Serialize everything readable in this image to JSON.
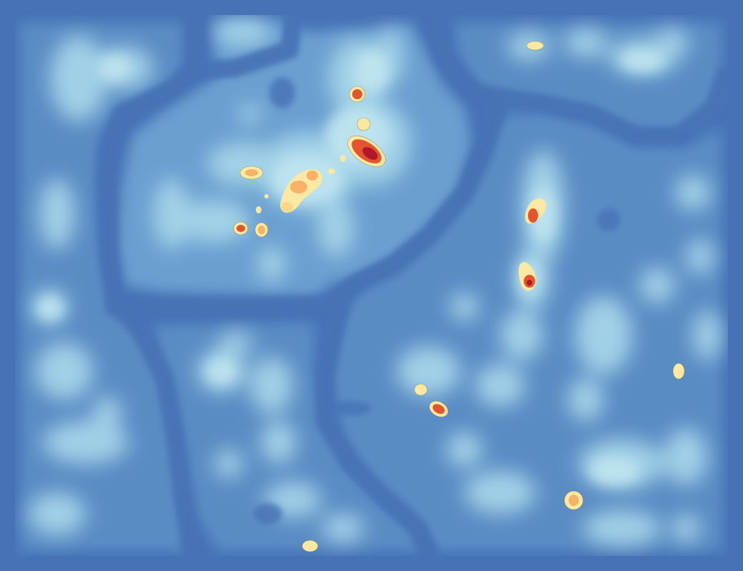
{
  "map": {
    "type": "density-heatmap",
    "palette": {
      "background": "#4673b5",
      "low": "#5a8cc4",
      "mid_low": "#8cc3e0",
      "mid": "#b6e0ee",
      "mid_high": "#fbe8a2",
      "high": "#f7b267",
      "very_high": "#e4542f",
      "peak": "#b2182b"
    },
    "regions": [
      {
        "name": "northwest",
        "level": "low"
      },
      {
        "name": "north-central",
        "level": "mid"
      },
      {
        "name": "northeast",
        "level": "low"
      },
      {
        "name": "west",
        "level": "low"
      },
      {
        "name": "south-central",
        "level": "low"
      },
      {
        "name": "east",
        "level": "mid_low"
      }
    ],
    "hotspots": [
      {
        "name": "north-central-core",
        "level": "peak"
      },
      {
        "name": "north-central-cluster",
        "level": "high"
      },
      {
        "name": "north-central-west",
        "level": "very_high"
      },
      {
        "name": "north-central-top",
        "level": "very_high"
      },
      {
        "name": "east-north",
        "level": "very_high"
      },
      {
        "name": "east-mid",
        "level": "very_high"
      },
      {
        "name": "east-south",
        "level": "very_high"
      },
      {
        "name": "east-south-small",
        "level": "mid_high"
      },
      {
        "name": "southeast",
        "level": "high"
      },
      {
        "name": "far-east",
        "level": "mid_high"
      },
      {
        "name": "northeast-top",
        "level": "mid_high"
      },
      {
        "name": "south-edge",
        "level": "mid_high"
      }
    ]
  }
}
